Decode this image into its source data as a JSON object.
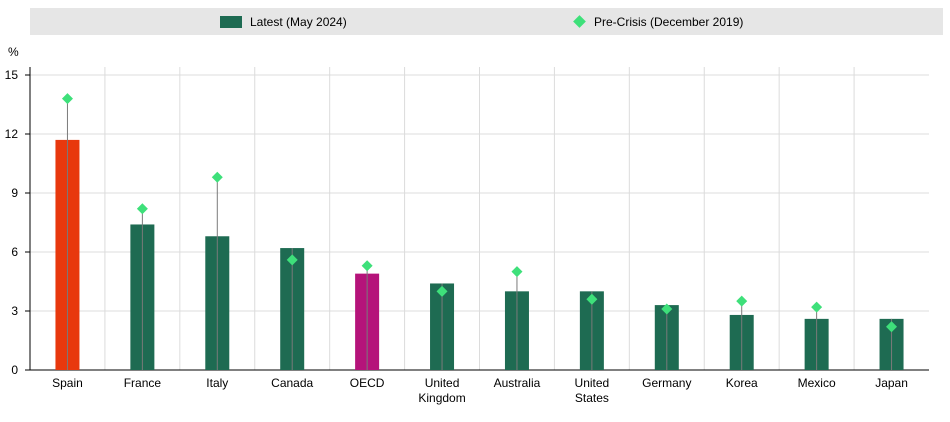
{
  "legend": {
    "latest_label": "Latest (May 2024)",
    "precrisis_label": "Pre-Crisis (December 2019)"
  },
  "colors": {
    "bar_default": "#1e6b52",
    "bar_highlight_spain": "#e8380d",
    "bar_highlight_oecd": "#b5137a",
    "marker": "#3ee07a",
    "legend_bg": "#e6e6e6",
    "grid": "#dcdcdc"
  },
  "chart_data": {
    "type": "bar",
    "unit_label": "%",
    "ylim": [
      0,
      15
    ],
    "yticks": [
      0,
      3,
      6,
      9,
      12,
      15
    ],
    "categories": [
      [
        "Spain"
      ],
      [
        "France"
      ],
      [
        "Italy"
      ],
      [
        "Canada"
      ],
      [
        "OECD"
      ],
      [
        "United",
        "Kingdom"
      ],
      [
        "Australia"
      ],
      [
        "United",
        "States"
      ],
      [
        "Germany"
      ],
      [
        "Korea"
      ],
      [
        "Mexico"
      ],
      [
        "Japan"
      ]
    ],
    "series": [
      {
        "name": "Latest (May 2024)",
        "kind": "bar",
        "values": [
          11.7,
          7.4,
          6.8,
          6.2,
          4.9,
          4.4,
          4.0,
          4.0,
          3.3,
          2.8,
          2.6,
          2.6
        ]
      },
      {
        "name": "Pre-Crisis (December 2019)",
        "kind": "marker",
        "values": [
          13.8,
          8.2,
          9.8,
          5.6,
          5.3,
          4.0,
          5.0,
          3.6,
          3.1,
          3.5,
          3.2,
          2.2
        ]
      }
    ],
    "highlight": {
      "Spain": "bar_highlight_spain",
      "OECD": "bar_highlight_oecd"
    },
    "grid": true,
    "legend_position": "top"
  }
}
